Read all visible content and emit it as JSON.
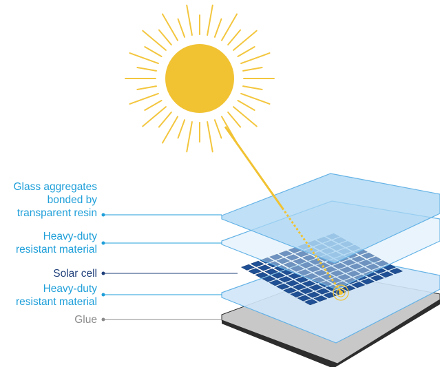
{
  "diagram": {
    "layers": [
      {
        "key": "glass",
        "label": "Glass aggregates\nbonded by\ntransparent resin",
        "color": "#1f9fd9"
      },
      {
        "key": "heavy1",
        "label": "Heavy-duty\nresistant material",
        "color": "#1f9fd9"
      },
      {
        "key": "solar",
        "label": "Solar cell",
        "color": "#1f3f7a"
      },
      {
        "key": "heavy2",
        "label": "Heavy-duty\nresistant material",
        "color": "#1f9fd9"
      },
      {
        "key": "glue",
        "label": "Glue",
        "color": "#8a8a8a"
      }
    ],
    "colors": {
      "sun": "#f1c232",
      "sun_rays": "#f3c63e",
      "glass_fill": "#a9d5f3",
      "film_fill": "#cfe6f8",
      "cell_fill": "#1f4f94",
      "glue_fill": "#c8c8c8",
      "base_fill": "#2d2d2d"
    }
  }
}
